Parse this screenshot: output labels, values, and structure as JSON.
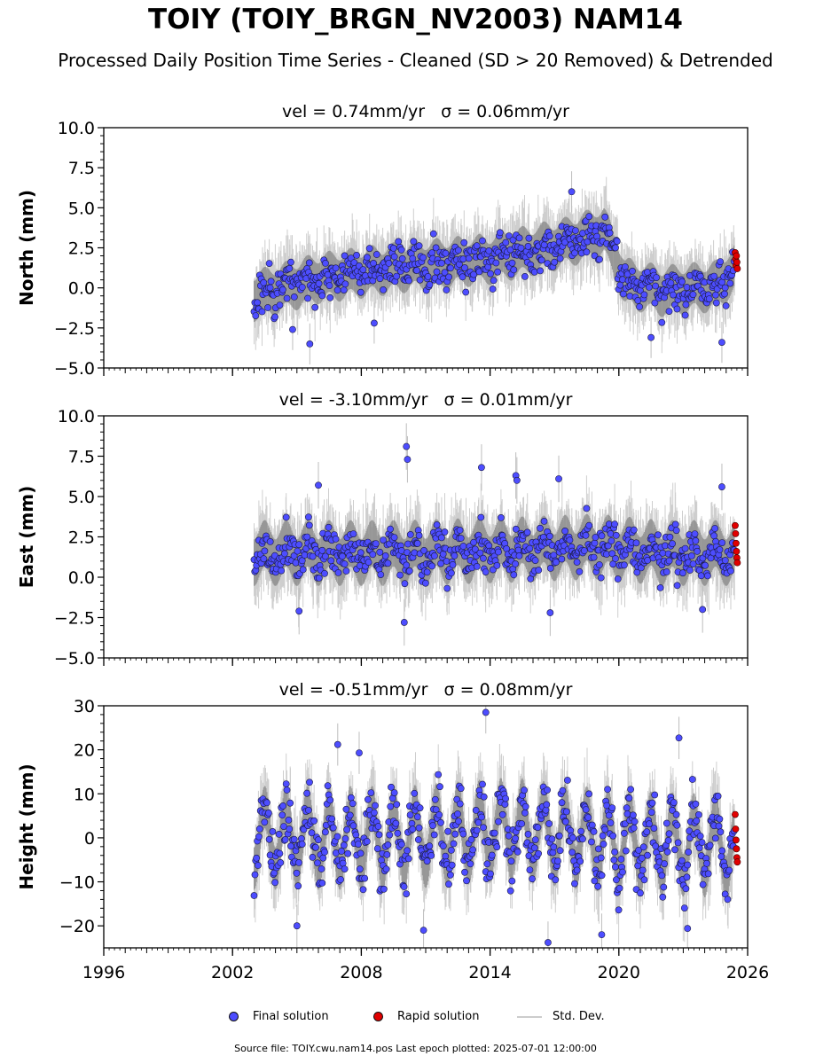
{
  "figure": {
    "title": "TOIY (TOIY_BRGN_NV2003) NAM14",
    "subtitle": "Processed Daily Position Time Series - Cleaned (SD > 20 Removed) & Detrended",
    "source_note": "Source file: TOIY.cwu.nam14.pos  Last epoch plotted: 2025-07-01 12:00:00"
  },
  "legend": {
    "final_label": "Final solution",
    "rapid_label": "Rapid solution",
    "sd_label": "Std. Dev."
  },
  "colors": {
    "final": "#4d4dff",
    "rapid": "#e00000",
    "sd": "#bdbdbd",
    "dense_band": "#6a6a6a"
  },
  "chart_data": [
    {
      "type": "scatter",
      "title": "vel = 0.74mm/yr   σ = 0.06mm/yr",
      "ylabel": "North (mm)",
      "xlim": [
        1996,
        2026
      ],
      "ylim": [
        -5,
        10
      ],
      "yticks": [
        "−5.0",
        "−2.5",
        "0.0",
        "2.5",
        "5.0",
        "7.5",
        "10.0"
      ],
      "ytick_values": [
        -5,
        -2.5,
        0,
        2.5,
        5,
        7.5,
        10
      ],
      "data_start": 2003.0,
      "data_end": 2025.5,
      "trend_x": [
        2003.0,
        2006.0,
        2010.0,
        2014.0,
        2017.5,
        2019.3,
        2020.3,
        2022.0,
        2024.5,
        2025.5
      ],
      "trend_y": [
        -0.5,
        0.6,
        1.3,
        1.8,
        2.8,
        3.6,
        0.3,
        -0.2,
        0.1,
        1.3
      ],
      "seasonal_amp": 0.35,
      "noise": 0.9,
      "sd_len": 1.6,
      "outliers": [
        {
          "x": 2005.6,
          "y": -3.5
        },
        {
          "x": 2017.8,
          "y": 6.0
        },
        {
          "x": 2024.8,
          "y": -3.4
        },
        {
          "x": 2021.5,
          "y": -3.1
        },
        {
          "x": 2004.8,
          "y": -2.6
        },
        {
          "x": 2008.6,
          "y": -2.2
        }
      ],
      "rapid": [
        {
          "x": 2025.42,
          "y": 2.2
        },
        {
          "x": 2025.44,
          "y": 1.8
        },
        {
          "x": 2025.46,
          "y": 1.4
        },
        {
          "x": 2025.48,
          "y": 2.0
        },
        {
          "x": 2025.5,
          "y": 1.6
        },
        {
          "x": 2025.52,
          "y": 1.2
        }
      ],
      "seed": 11
    },
    {
      "type": "scatter",
      "title": "vel = -3.10mm/yr   σ = 0.01mm/yr",
      "ylabel": "East (mm)",
      "xlim": [
        1996,
        2026
      ],
      "ylim": [
        -5,
        10
      ],
      "yticks": [
        "−5.0",
        "−2.5",
        "0.0",
        "2.5",
        "5.0",
        "7.5",
        "10.0"
      ],
      "ytick_values": [
        -5,
        -2.5,
        0,
        2.5,
        5,
        7.5,
        10
      ],
      "data_start": 2003.0,
      "data_end": 2025.5,
      "trend_x": [
        2003.0,
        2010.0,
        2015.0,
        2019.0,
        2022.0,
        2025.5
      ],
      "trend_y": [
        1.5,
        1.5,
        1.7,
        1.9,
        1.5,
        1.5
      ],
      "seasonal_amp": 0.6,
      "noise": 0.95,
      "sd_len": 1.8,
      "outliers": [
        {
          "x": 2010.1,
          "y": 8.1
        },
        {
          "x": 2010.15,
          "y": 7.3
        },
        {
          "x": 2013.6,
          "y": 6.8
        },
        {
          "x": 2015.2,
          "y": 6.3
        },
        {
          "x": 2015.25,
          "y": 6.0
        },
        {
          "x": 2017.2,
          "y": 6.1
        },
        {
          "x": 2006.0,
          "y": 5.7
        },
        {
          "x": 2024.8,
          "y": 5.6
        },
        {
          "x": 2010.0,
          "y": -2.8
        },
        {
          "x": 2016.8,
          "y": -2.2
        },
        {
          "x": 2023.9,
          "y": -2.0
        },
        {
          "x": 2005.1,
          "y": -2.1
        }
      ],
      "rapid": [
        {
          "x": 2025.42,
          "y": 3.2
        },
        {
          "x": 2025.44,
          "y": 2.7
        },
        {
          "x": 2025.46,
          "y": 2.1
        },
        {
          "x": 2025.48,
          "y": 1.6
        },
        {
          "x": 2025.5,
          "y": 1.2
        },
        {
          "x": 2025.52,
          "y": 0.9
        }
      ],
      "seed": 23
    },
    {
      "type": "scatter",
      "title": "vel = -0.51mm/yr   σ = 0.08mm/yr",
      "ylabel": "Height (mm)",
      "xlabel_ticks": [
        "1996",
        "2002",
        "2008",
        "2014",
        "2020",
        "2026"
      ],
      "xtick_values": [
        1996,
        2002,
        2008,
        2014,
        2020,
        2026
      ],
      "xlim": [
        1996,
        2026
      ],
      "ylim": [
        -25,
        30
      ],
      "yticks": [
        "−20",
        "−10",
        "0",
        "10",
        "20",
        "30"
      ],
      "ytick_values": [
        -20,
        -10,
        0,
        10,
        20,
        30
      ],
      "data_start": 2003.0,
      "data_end": 2025.5,
      "trend_x": [
        2003.0,
        2010.0,
        2015.0,
        2020.0,
        2025.5
      ],
      "trend_y": [
        0.0,
        0.0,
        2.0,
        -1.0,
        -2.0
      ],
      "seasonal_amp": 7.0,
      "noise": 4.5,
      "sd_len": 6.0,
      "outliers": [
        {
          "x": 2013.8,
          "y": 28.5
        },
        {
          "x": 2022.8,
          "y": 22.7
        },
        {
          "x": 2006.9,
          "y": 21.2
        },
        {
          "x": 2007.9,
          "y": 19.3
        },
        {
          "x": 2016.7,
          "y": -23.8
        },
        {
          "x": 2019.2,
          "y": -22.0
        },
        {
          "x": 2010.9,
          "y": -21.0
        },
        {
          "x": 2023.2,
          "y": -20.6
        },
        {
          "x": 2005.0,
          "y": -20.0
        }
      ],
      "rapid": [
        {
          "x": 2025.42,
          "y": 5.3
        },
        {
          "x": 2025.44,
          "y": 2.0
        },
        {
          "x": 2025.46,
          "y": -0.5
        },
        {
          "x": 2025.48,
          "y": -2.5
        },
        {
          "x": 2025.5,
          "y": -4.5
        },
        {
          "x": 2025.52,
          "y": -5.5
        }
      ],
      "seed": 37
    }
  ]
}
